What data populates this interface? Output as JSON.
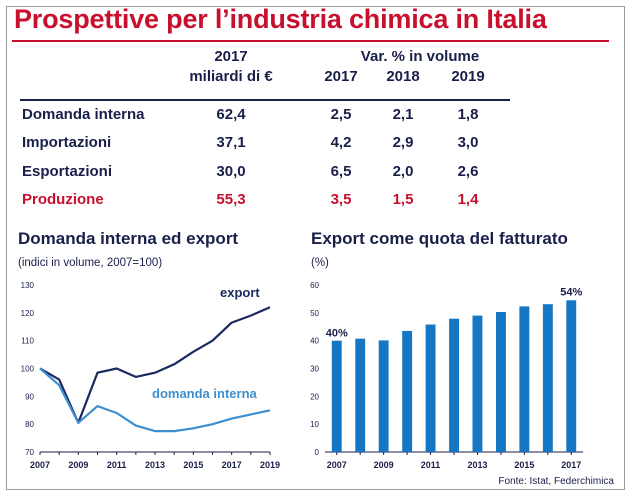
{
  "title": "Prospettive per l’industria chimica in Italia",
  "table": {
    "header": {
      "col1_line1": "2017",
      "col1_line2": "miliardi di €",
      "var_label": "Var. % in volume",
      "years": [
        "2017",
        "2018",
        "2019"
      ]
    },
    "rows": [
      {
        "label": "Domanda interna",
        "value": "62,4",
        "v2017": "2,5",
        "v2018": "2,1",
        "v2019": "1,8"
      },
      {
        "label": "Importazioni",
        "value": "37,1",
        "v2017": "4,2",
        "v2018": "2,9",
        "v2019": "3,0"
      },
      {
        "label": "Esportazioni",
        "value": "30,0",
        "v2017": "6,5",
        "v2018": "2,0",
        "v2019": "2,6"
      },
      {
        "label": "Produzione",
        "value": "55,3",
        "v2017": "3,5",
        "v2018": "1,5",
        "v2019": "1,4"
      }
    ]
  },
  "left_chart": {
    "title": "Domanda interna ed export",
    "subtitle": "(indici in volume, 2007=100)"
  },
  "right_chart": {
    "title": "Export come quota del fatturato",
    "subtitle": "(%)"
  },
  "source": "Fonte: Istat, Federchimica",
  "colors": {
    "title_red": "#c8102e",
    "navy": "#1a1f4a",
    "export_line": "#1b2a5e",
    "domestic_line": "#3d8fcf",
    "bar": "#1577c4"
  },
  "chart_data": [
    {
      "type": "line",
      "x": [
        2007,
        2008,
        2009,
        2010,
        2011,
        2012,
        2013,
        2014,
        2015,
        2016,
        2017,
        2018,
        2019
      ],
      "series": [
        {
          "name": "export",
          "values": [
            100,
            96,
            80.5,
            98.5,
            100,
            97,
            98.5,
            101.5,
            106,
            110,
            116.5,
            119,
            122
          ]
        },
        {
          "name": "domanda interna",
          "values": [
            100,
            94,
            80.5,
            86.5,
            84,
            79.5,
            77.5,
            77.5,
            78.5,
            80,
            82,
            83.5,
            85
          ]
        }
      ],
      "xticks": [
        "2007",
        "2009",
        "2011",
        "2013",
        "2015",
        "2017",
        "2019"
      ],
      "yticks": [
        "70",
        "80",
        "90",
        "100",
        "110",
        "120",
        "130"
      ],
      "ylim": [
        70,
        130
      ],
      "xlim": [
        2007,
        2019
      ]
    },
    {
      "type": "bar",
      "categories": [
        2007,
        2008,
        2009,
        2010,
        2011,
        2012,
        2013,
        2014,
        2015,
        2016,
        2017
      ],
      "values": [
        40,
        40.7,
        40.1,
        43.5,
        45.8,
        47.9,
        49,
        50.3,
        52.3,
        53.1,
        54.5
      ],
      "data_labels": {
        "first": "40%",
        "last": "54%"
      },
      "xticks": [
        "2007",
        "2009",
        "2011",
        "2013",
        "2015",
        "2017"
      ],
      "yticks": [
        "0",
        "10",
        "20",
        "30",
        "40",
        "50",
        "60"
      ],
      "ylim": [
        0,
        60
      ]
    }
  ]
}
